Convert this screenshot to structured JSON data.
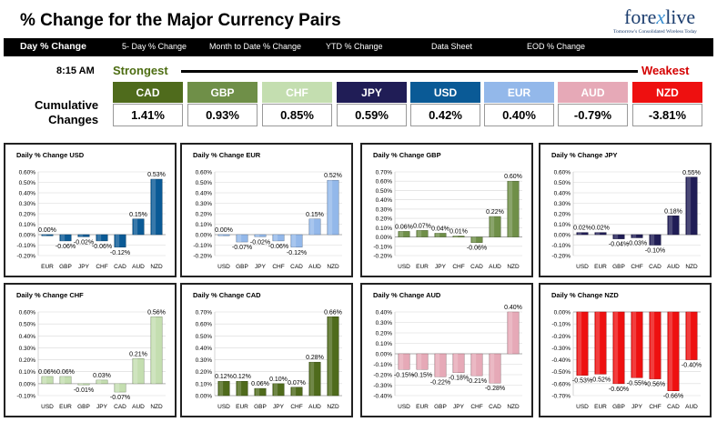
{
  "header": {
    "title": "% Change for the Major Currency Pairs",
    "logo_text_a": "fore",
    "logo_text_x": "x",
    "logo_text_b": "live",
    "logo_tagline": "Tomorrow's Consolidated Wireless Today"
  },
  "nav": [
    {
      "label": "Day % Change",
      "active": true
    },
    {
      "label": "5- Day % Change",
      "active": false
    },
    {
      "label": "Month to Date % Change",
      "active": false
    },
    {
      "label": "YTD % Change",
      "active": false
    },
    {
      "label": "Data Sheet",
      "active": false
    },
    {
      "label": "EOD % Change",
      "active": false
    }
  ],
  "ranking": {
    "time": "8:15 AM",
    "strongest_label": "Strongest",
    "weakest_label": "Weakest",
    "row_label_line1": "Cumulative",
    "row_label_line2": "Changes",
    "currencies": [
      {
        "code": "CAD",
        "value": "1.41%",
        "color": "#4f6b1c"
      },
      {
        "code": "GBP",
        "value": "0.93%",
        "color": "#6f8f48"
      },
      {
        "code": "CHF",
        "value": "0.85%",
        "color": "#c4deb0"
      },
      {
        "code": "JPY",
        "value": "0.59%",
        "color": "#201d56"
      },
      {
        "code": "USD",
        "value": "0.42%",
        "color": "#0a5a96"
      },
      {
        "code": "EUR",
        "value": "0.40%",
        "color": "#93b8ea"
      },
      {
        "code": "AUD",
        "value": "-0.79%",
        "color": "#e6a9b7"
      },
      {
        "code": "NZD",
        "value": "-3.81%",
        "color": "#ee1010"
      }
    ]
  },
  "chart_data": [
    {
      "type": "bar",
      "title": "Daily % Change USD",
      "categories": [
        "EUR",
        "GBP",
        "JPY",
        "CHF",
        "CAD",
        "AUD",
        "NZD"
      ],
      "values": [
        0.0,
        -0.06,
        -0.02,
        -0.06,
        -0.12,
        0.15,
        0.53
      ],
      "labels": [
        "0.00%",
        "-0.06%",
        "-0.02%",
        "-0.06%",
        "-0.12%",
        "0.15%",
        "0.53%"
      ],
      "ylim": [
        -0.2,
        0.6
      ],
      "ticks": [
        "0.60%",
        "0.50%",
        "0.40%",
        "0.30%",
        "0.20%",
        "0.10%",
        "0.00%",
        "-0.10%",
        "-0.20%"
      ],
      "color": "#0a5a96"
    },
    {
      "type": "bar",
      "title": "Daily % Change EUR",
      "categories": [
        "USD",
        "GBP",
        "JPY",
        "CHF",
        "CAD",
        "AUD",
        "NZD"
      ],
      "values": [
        0.0,
        -0.07,
        -0.02,
        -0.06,
        -0.12,
        0.15,
        0.52
      ],
      "labels": [
        "0.00%",
        "-0.07%",
        "-0.02%",
        "-0.06%",
        "-0.12%",
        "0.15%",
        "0.52%"
      ],
      "ylim": [
        -0.2,
        0.6
      ],
      "ticks": [
        "0.60%",
        "0.50%",
        "0.40%",
        "0.30%",
        "0.20%",
        "0.10%",
        "0.00%",
        "-0.10%",
        "-0.20%"
      ],
      "color": "#93b8ea"
    },
    {
      "type": "bar",
      "title": "Daily % Change GBP",
      "categories": [
        "USD",
        "EUR",
        "JPY",
        "CHF",
        "CAD",
        "AUD",
        "NZD"
      ],
      "values": [
        0.06,
        0.07,
        0.04,
        0.01,
        -0.06,
        0.22,
        0.6
      ],
      "labels": [
        "0.06%",
        "0.07%",
        "0.04%",
        "0.01%",
        "-0.06%",
        "0.22%",
        "0.60%"
      ],
      "ylim": [
        -0.2,
        0.7
      ],
      "ticks": [
        "0.70%",
        "0.60%",
        "0.50%",
        "0.40%",
        "0.30%",
        "0.20%",
        "0.10%",
        "0.00%",
        "-0.10%",
        "-0.20%"
      ],
      "color": "#6f8f48"
    },
    {
      "type": "bar",
      "title": "Daily % Change JPY",
      "categories": [
        "USD",
        "EUR",
        "GBP",
        "CHF",
        "CAD",
        "AUD",
        "NZD"
      ],
      "values": [
        0.02,
        0.02,
        -0.04,
        -0.03,
        -0.1,
        0.18,
        0.55
      ],
      "labels": [
        "0.02%",
        "0.02%",
        "-0.04%",
        "-0.03%",
        "-0.10%",
        "0.18%",
        "0.55%"
      ],
      "ylim": [
        -0.2,
        0.6
      ],
      "ticks": [
        "0.60%",
        "0.50%",
        "0.40%",
        "0.30%",
        "0.20%",
        "0.10%",
        "0.00%",
        "-0.10%",
        "-0.20%"
      ],
      "color": "#201d56"
    },
    {
      "type": "bar",
      "title": "Daily % Change CHF",
      "categories": [
        "USD",
        "EUR",
        "GBP",
        "JPY",
        "CAD",
        "AUD",
        "NZD"
      ],
      "values": [
        0.06,
        0.06,
        -0.01,
        0.03,
        -0.07,
        0.21,
        0.56
      ],
      "labels": [
        "0.06%",
        "0.06%",
        "-0.01%",
        "0.03%",
        "-0.07%",
        "0.21%",
        "0.56%"
      ],
      "ylim": [
        -0.1,
        0.6
      ],
      "ticks": [
        "0.60%",
        "0.50%",
        "0.40%",
        "0.30%",
        "0.20%",
        "0.10%",
        "0.00%",
        "-0.10%"
      ],
      "color": "#c4deb0"
    },
    {
      "type": "bar",
      "title": "Daily % Change CAD",
      "categories": [
        "USD",
        "EUR",
        "GBP",
        "JPY",
        "CHF",
        "AUD",
        "NZD"
      ],
      "values": [
        0.12,
        0.12,
        0.06,
        0.1,
        0.07,
        0.28,
        0.66
      ],
      "labels": [
        "0.12%",
        "0.12%",
        "0.06%",
        "0.10%",
        "0.07%",
        "0.28%",
        "0.66%"
      ],
      "ylim": [
        0.0,
        0.7
      ],
      "ticks": [
        "0.70%",
        "0.60%",
        "0.50%",
        "0.40%",
        "0.30%",
        "0.20%",
        "0.10%",
        "0.00%"
      ],
      "color": "#4f6b1c"
    },
    {
      "type": "bar",
      "title": "Daily % Change AUD",
      "categories": [
        "USD",
        "EUR",
        "GBP",
        "JPY",
        "CHF",
        "CAD",
        "NZD"
      ],
      "values": [
        -0.15,
        -0.15,
        -0.22,
        -0.18,
        -0.21,
        -0.28,
        0.4
      ],
      "labels": [
        "-0.15%",
        "-0.15%",
        "-0.22%",
        "-0.18%",
        "-0.21%",
        "-0.28%",
        "0.40%"
      ],
      "ylim": [
        -0.4,
        0.4
      ],
      "ticks": [
        "0.40%",
        "0.30%",
        "0.20%",
        "0.10%",
        "0.00%",
        "-0.10%",
        "-0.20%",
        "-0.30%",
        "-0.40%"
      ],
      "color": "#e6a9b7"
    },
    {
      "type": "bar",
      "title": "Daily % Change NZD",
      "categories": [
        "USD",
        "EUR",
        "GBP",
        "JPY",
        "CHF",
        "CAD",
        "AUD"
      ],
      "values": [
        -0.53,
        -0.52,
        -0.6,
        -0.55,
        -0.56,
        -0.66,
        -0.4
      ],
      "labels": [
        "-0.53%",
        "-0.52%",
        "-0.60%",
        "-0.55%",
        "-0.56%",
        "-0.66%",
        "-0.40%"
      ],
      "ylim": [
        -0.7,
        0.0
      ],
      "ticks": [
        "0.00%",
        "-0.10%",
        "-0.20%",
        "-0.30%",
        "-0.40%",
        "-0.50%",
        "-0.60%",
        "-0.70%"
      ],
      "color": "#ee1010"
    }
  ]
}
